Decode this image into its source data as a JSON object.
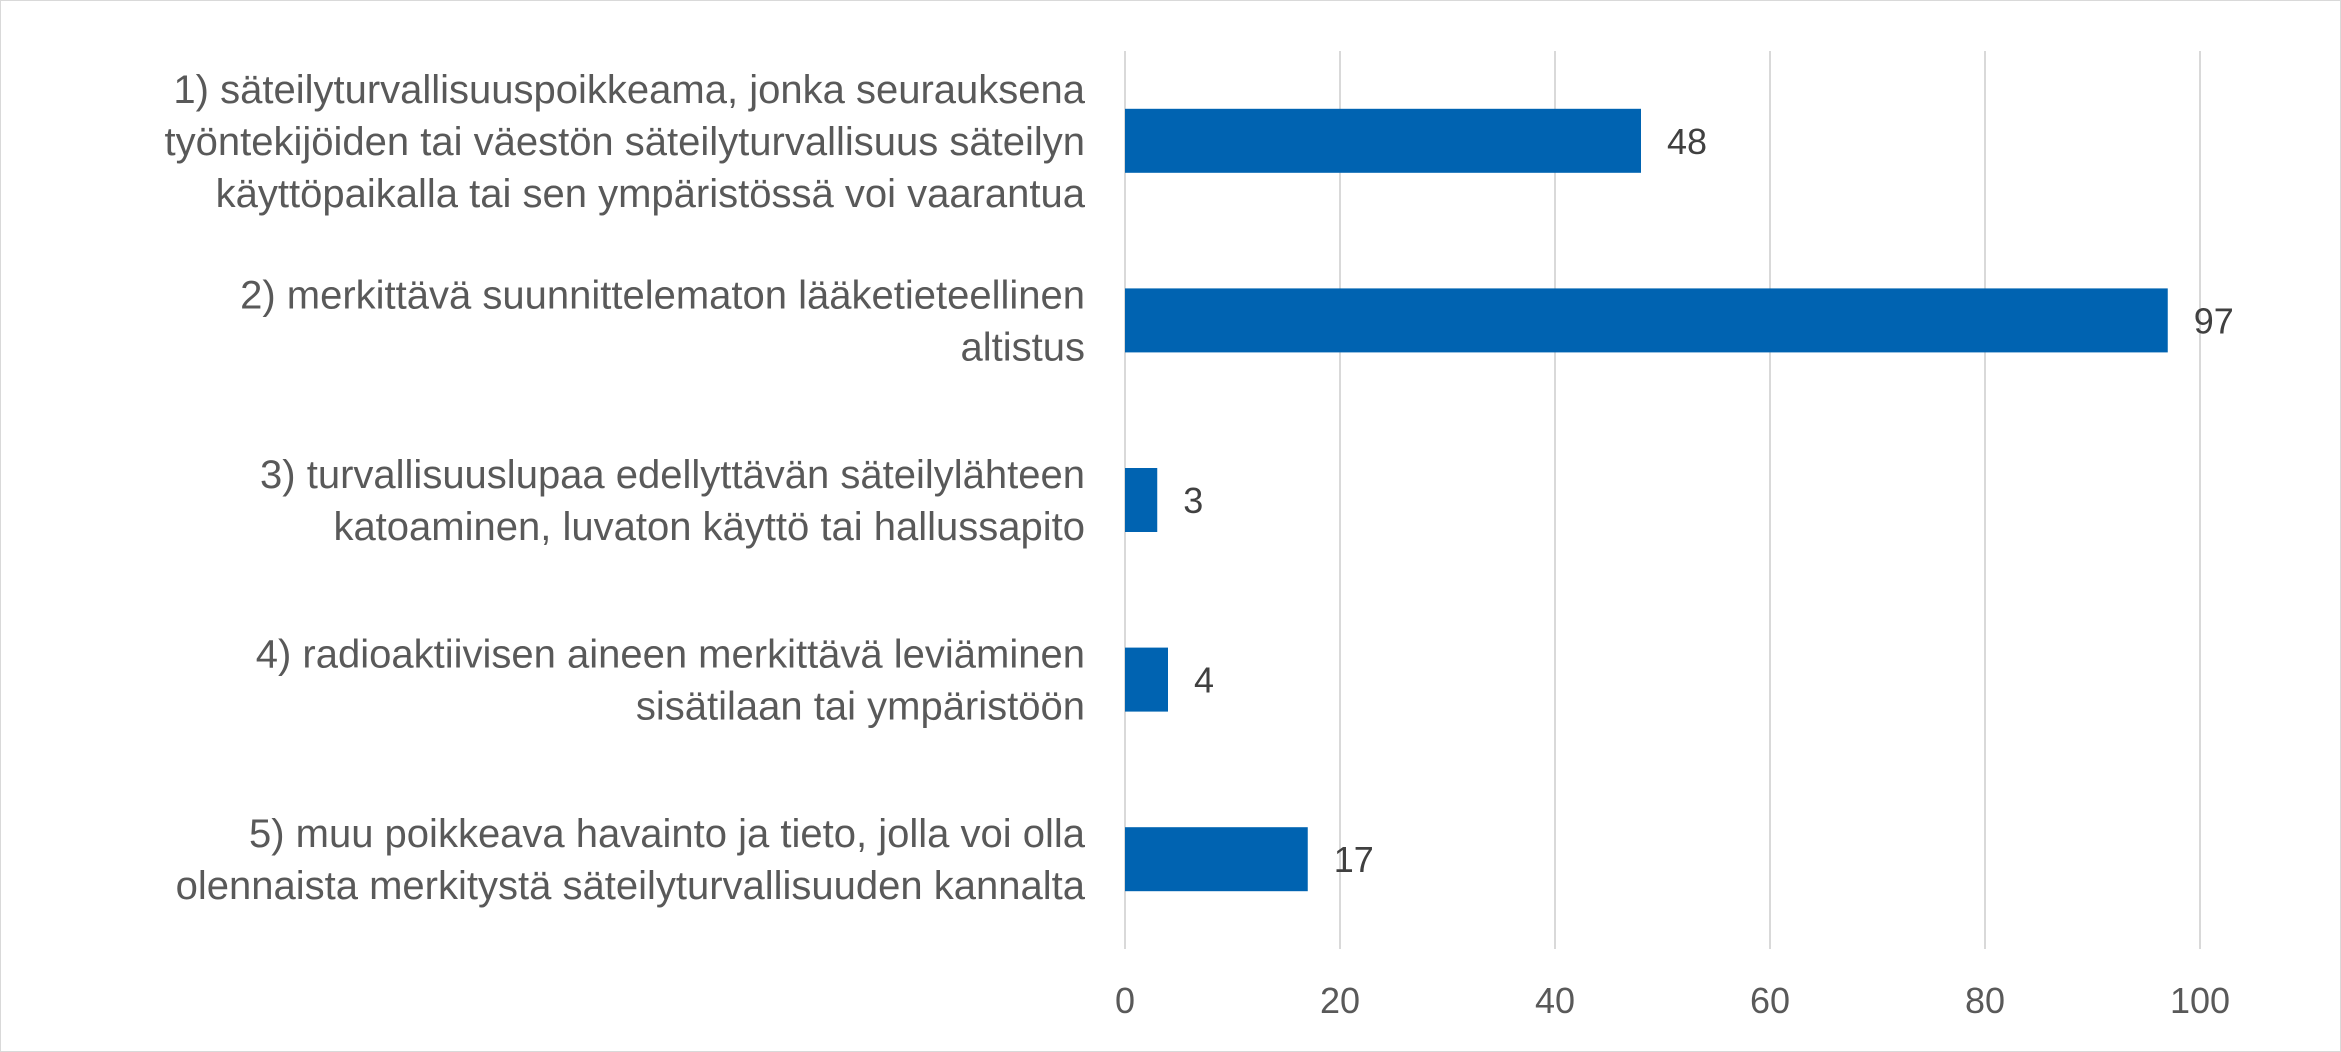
{
  "chart_data": {
    "type": "bar",
    "orientation": "horizontal",
    "categories": [
      [
        "1) säteilyturvallisuuspoikkeama, jonka seurauksena",
        "työntekijöiden tai väestön säteilyturvallisuus säteilyn",
        "käyttöpaikalla tai sen ympäristössä voi vaarantua"
      ],
      [
        "2) merkittävä suunnittelematon lääketieteellinen",
        "altistus"
      ],
      [
        "3) turvallisuuslupaa edellyttävän säteilylähteen",
        "katoaminen, luvaton käyttö tai hallussapito"
      ],
      [
        "4) radioaktiivisen aineen merkittävä leviäminen",
        "sisätilaan tai ympäristöön"
      ],
      [
        "5) muu poikkeava havainto ja tieto, jolla voi olla",
        "olennaista merkitystä säteilyturvallisuuden kannalta"
      ]
    ],
    "values": [
      48,
      97,
      3,
      4,
      17
    ],
    "data_labels": [
      "48",
      "97",
      "3",
      "4",
      "17"
    ],
    "x_ticks": [
      "0",
      "20",
      "40",
      "60",
      "80",
      "100"
    ],
    "xlim": [
      0,
      100
    ],
    "grid": "vertical",
    "legend": "none",
    "bar_color": "#0063B1",
    "gridline_color": "#d9d9d9",
    "text_color": "#595959"
  }
}
